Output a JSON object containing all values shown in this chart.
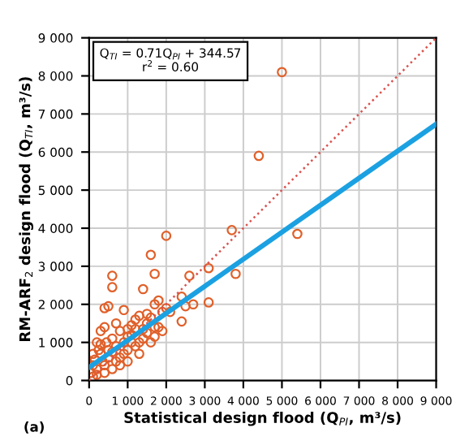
{
  "chart_data": {
    "type": "scatter",
    "xlabel": "Statistical design flood (Q$_{PI}$, m³/s)",
    "ylabel": "RM-ARF$_{2}$ design flood (Q$_{TI}$, m³/s)",
    "annotations": [
      "Q$_{TI}$ = 0.71Q$_{PI}$ + 344.57\nr$^{2}$ = 0.60",
      "(a)"
    ],
    "xlim": [
      0,
      9000
    ],
    "ylim": [
      0,
      9000
    ],
    "xticks": [
      0,
      {
        "value": 1000,
        "label": "1 000"
      },
      {
        "value": 2000,
        "label": "2 000"
      },
      {
        "value": 3000,
        "label": "3 000"
      },
      {
        "value": 4000,
        "label": "4 000"
      },
      {
        "value": 5000,
        "label": "5 000"
      },
      {
        "value": 6000,
        "label": "6 000"
      },
      {
        "value": 7000,
        "label": "7 000"
      },
      {
        "value": 8000,
        "label": "8 000"
      },
      {
        "value": 9000,
        "label": "9 000"
      }
    ],
    "yticks": [
      0,
      {
        "value": 1000,
        "label": "1 000"
      },
      {
        "value": 2000,
        "label": "2 000"
      },
      {
        "value": 3000,
        "label": "3 000"
      },
      {
        "value": 4000,
        "label": "4 000"
      },
      {
        "value": 5000,
        "label": "5 000"
      },
      {
        "value": 6000,
        "label": "6 000"
      },
      {
        "value": 7000,
        "label": "7 000"
      },
      {
        "value": 8000,
        "label": "8 000"
      },
      {
        "value": 9000,
        "label": "9 000"
      }
    ],
    "grid": true,
    "legend": false,
    "series": [
      {
        "type": "line",
        "color": "#d9534f",
        "line_style": "dotted",
        "marker": "none",
        "x": [
          0,
          9000
        ],
        "values": [
          0,
          9000
        ]
      },
      {
        "color": "#e0602a",
        "marker": "circle",
        "x": [
          5000,
          4400,
          3700,
          5400,
          2000,
          3800,
          3100,
          3100,
          2600,
          2700,
          2400,
          2400,
          2500,
          1600,
          1700,
          1400,
          600,
          600,
          500,
          400,
          900,
          1800,
          1900,
          1700,
          1800,
          1900,
          1700,
          1600,
          1500,
          1300,
          1100,
          1000,
          1200,
          1300,
          1000,
          800,
          700,
          600,
          500,
          400,
          300,
          200,
          300,
          100,
          100,
          50,
          200,
          400,
          600,
          800,
          500,
          900,
          1100,
          1400,
          1500,
          1600,
          1200,
          800,
          700,
          300,
          200,
          100,
          400,
          1000,
          1400,
          1700,
          2000,
          1300,
          900,
          700,
          1100,
          2100,
          150,
          250,
          350,
          450,
          600,
          1500,
          1200,
          1000
        ],
        "values": [
          8100,
          5900,
          3950,
          3850,
          3800,
          2800,
          2950,
          2050,
          2750,
          2000,
          2200,
          1550,
          1950,
          3300,
          2800,
          2400,
          2750,
          2450,
          1950,
          1900,
          1850,
          2100,
          1800,
          2000,
          1400,
          1300,
          1150,
          1000,
          1750,
          1700,
          1450,
          1150,
          900,
          700,
          500,
          600,
          900,
          1100,
          800,
          1400,
          1300,
          1000,
          700,
          700,
          400,
          200,
          300,
          400,
          300,
          400,
          600,
          1000,
          1200,
          1350,
          1500,
          1650,
          1350,
          1300,
          1500,
          950,
          150,
          100,
          200,
          800,
          1100,
          1400,
          1900,
          1000,
          700,
          500,
          1000,
          1800,
          550,
          800,
          500,
          1000,
          750,
          1250,
          1600,
          1350
        ]
      },
      {
        "type": "line",
        "color": "#1ba1e2",
        "line_style": "solid",
        "marker": "none",
        "x": [
          0,
          9000
        ],
        "values": [
          345,
          6735
        ]
      }
    ]
  }
}
